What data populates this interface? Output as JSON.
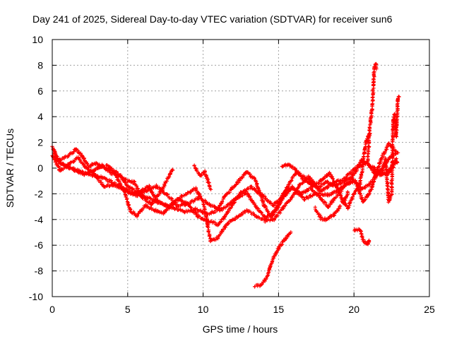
{
  "chart_data": {
    "type": "scatter",
    "title": "Day 241 of 2025, Sidereal Day-to-day VTEC variation (SDTVAR) for receiver sun6",
    "xlabel": "GPS time / hours",
    "ylabel": "SDTVAR / TECUs",
    "xlim": [
      0,
      25
    ],
    "ylim": [
      -10,
      10
    ],
    "xticks": [
      0,
      5,
      10,
      15,
      20,
      25
    ],
    "xtick_labels": [
      "0",
      "5",
      "10",
      "15",
      "20",
      "25"
    ],
    "yticks": [
      -10,
      -8,
      -6,
      -4,
      -2,
      0,
      2,
      4,
      6,
      8,
      10
    ],
    "ytick_labels": [
      "-10",
      "-8",
      "-6",
      "-4",
      "-2",
      "0",
      "2",
      "4",
      "6",
      "8",
      "10"
    ],
    "grid": true,
    "marker": "+",
    "series": [
      {
        "name": "sun6",
        "color": "#ff0000",
        "tracks": [
          [
            [
              0.0,
              1.7
            ],
            [
              0.4,
              0.6
            ],
            [
              1.0,
              0.9
            ],
            [
              1.6,
              1.5
            ],
            [
              2.0,
              0.9
            ],
            [
              2.4,
              0.1
            ],
            [
              2.9,
              0.4
            ],
            [
              3.5,
              0.0
            ],
            [
              4.1,
              -0.3
            ],
            [
              4.6,
              -1.5
            ],
            [
              5.2,
              -2.0
            ],
            [
              6.0,
              -2.2
            ],
            [
              7.0,
              -2.6
            ],
            [
              8.0,
              -3.1
            ],
            [
              8.8,
              -3.4
            ],
            [
              9.5,
              -3.2
            ],
            [
              10.3,
              -3.6
            ],
            [
              10.9,
              -3.3
            ],
            [
              11.4,
              -2.3
            ],
            [
              12.2,
              -1.2
            ],
            [
              12.9,
              -0.3
            ],
            [
              13.5,
              -1.0
            ],
            [
              14.0,
              -2.8
            ],
            [
              14.5,
              -3.8
            ],
            [
              15.0,
              -3.0
            ],
            [
              15.6,
              -1.4
            ],
            [
              16.2,
              -0.3
            ],
            [
              17.0,
              -0.9
            ],
            [
              17.8,
              -1.8
            ],
            [
              18.6,
              -1.2
            ],
            [
              19.4,
              -0.8
            ],
            [
              20.2,
              0.1
            ],
            [
              20.9,
              0.4
            ],
            [
              21.5,
              -0.6
            ],
            [
              22.2,
              -0.4
            ],
            [
              22.9,
              0.5
            ]
          ],
          [
            [
              0.1,
              1.2
            ],
            [
              0.6,
              0.3
            ],
            [
              1.2,
              0.0
            ],
            [
              1.8,
              -0.2
            ],
            [
              2.4,
              -0.5
            ],
            [
              3.2,
              -0.7
            ],
            [
              4.0,
              -1.1
            ],
            [
              4.7,
              -1.6
            ],
            [
              5.5,
              -2.0
            ],
            [
              6.2,
              -1.8
            ],
            [
              6.9,
              -1.4
            ],
            [
              7.6,
              -2.1
            ],
            [
              8.3,
              -2.9
            ],
            [
              9.0,
              -2.8
            ],
            [
              9.7,
              -2.3
            ],
            [
              10.4,
              -2.8
            ],
            [
              11.1,
              -3.3
            ],
            [
              11.8,
              -2.8
            ],
            [
              12.5,
              -1.9
            ],
            [
              13.2,
              -1.5
            ],
            [
              13.9,
              -2.1
            ],
            [
              14.6,
              -2.9
            ],
            [
              15.2,
              -2.4
            ],
            [
              15.9,
              -1.5
            ],
            [
              16.7,
              -2.4
            ],
            [
              17.5,
              -2.0
            ],
            [
              18.3,
              -2.1
            ],
            [
              19.1,
              -1.6
            ],
            [
              19.9,
              -0.9
            ],
            [
              20.5,
              -1.6
            ],
            [
              21.0,
              -1.3
            ],
            [
              21.6,
              -0.4
            ],
            [
              22.3,
              0.7
            ],
            [
              22.8,
              1.2
            ]
          ],
          [
            [
              0.2,
              0.7
            ],
            [
              0.8,
              0.2
            ],
            [
              1.4,
              -0.1
            ],
            [
              2.1,
              -0.5
            ],
            [
              2.7,
              -0.2
            ],
            [
              3.3,
              0.2
            ],
            [
              3.9,
              -0.4
            ],
            [
              4.5,
              -0.6
            ],
            [
              5.0,
              -1.4
            ],
            [
              5.6,
              -1.9
            ],
            [
              6.4,
              -1.4
            ],
            [
              7.0,
              -2.7
            ],
            [
              7.7,
              -3.0
            ],
            [
              8.4,
              -2.4
            ],
            [
              9.0,
              -2.8
            ],
            [
              9.6,
              -3.7
            ],
            [
              10.3,
              -4.1
            ],
            [
              11.0,
              -4.4
            ],
            [
              11.6,
              -3.5
            ],
            [
              12.2,
              -2.4
            ],
            [
              12.9,
              -1.9
            ],
            [
              13.6,
              -3.2
            ],
            [
              14.2,
              -3.9
            ],
            [
              14.8,
              -3.2
            ],
            [
              15.3,
              -2.0
            ],
            [
              15.9,
              -1.5
            ],
            [
              16.5,
              -2.0
            ],
            [
              17.1,
              -1.6
            ],
            [
              17.7,
              -2.2
            ],
            [
              18.3,
              -3.0
            ],
            [
              18.9,
              -2.1
            ],
            [
              19.5,
              -1.2
            ],
            [
              20.1,
              -1.0
            ],
            [
              20.6,
              -2.6
            ],
            [
              21.1,
              -1.8
            ],
            [
              21.7,
              0.4
            ],
            [
              22.3,
              1.9
            ],
            [
              22.9,
              1.2
            ]
          ],
          [
            [
              0.0,
              1.0
            ],
            [
              0.5,
              -0.2
            ],
            [
              1.1,
              0.3
            ],
            [
              1.7,
              0.8
            ],
            [
              2.2,
              0.1
            ],
            [
              2.8,
              -0.5
            ],
            [
              3.4,
              -1.4
            ],
            [
              4.0,
              -1.3
            ],
            [
              4.7,
              -1.6
            ],
            [
              5.2,
              -3.3
            ],
            [
              5.6,
              -3.7
            ],
            [
              6.2,
              -2.9
            ],
            [
              6.8,
              -3.3
            ],
            [
              7.4,
              -3.5
            ],
            [
              8.2,
              -2.5
            ],
            [
              8.9,
              -2.0
            ],
            [
              9.5,
              -1.6
            ],
            [
              10.0,
              -2.6
            ],
            [
              10.5,
              -5.7
            ],
            [
              11.0,
              -5.4
            ],
            [
              11.6,
              -4.3
            ],
            [
              12.3,
              -3.8
            ],
            [
              12.9,
              -3.3
            ],
            [
              13.5,
              -3.7
            ],
            [
              14.1,
              -4.1
            ],
            [
              14.7,
              -4.0
            ],
            [
              15.3,
              -3.1
            ],
            [
              15.8,
              -2.4
            ],
            [
              16.4,
              -1.3
            ],
            [
              17.0,
              -0.7
            ],
            [
              17.6,
              -1.5
            ],
            [
              18.2,
              -1.1
            ],
            [
              18.8,
              -1.4
            ],
            [
              19.4,
              -1.0
            ],
            [
              20.0,
              -0.5
            ],
            [
              20.5,
              0.6
            ],
            [
              21.0,
              0.2
            ],
            [
              21.6,
              -0.2
            ],
            [
              22.2,
              -0.5
            ],
            [
              22.8,
              0.7
            ]
          ],
          [
            [
              3.6,
              0.2
            ],
            [
              4.2,
              -0.3
            ],
            [
              4.8,
              -0.9
            ],
            [
              5.4,
              -1.1
            ],
            [
              6.0,
              -2.3
            ],
            [
              6.6,
              -2.8
            ],
            [
              7.2,
              -1.8
            ],
            [
              7.8,
              -0.5
            ],
            [
              8.0,
              -0.1
            ]
          ],
          [
            [
              9.4,
              0.2
            ],
            [
              9.8,
              -0.6
            ],
            [
              10.1,
              -0.3
            ],
            [
              10.5,
              -1.6
            ]
          ],
          [
            [
              13.4,
              -9.2
            ],
            [
              13.8,
              -9.1
            ],
            [
              14.2,
              -8.6
            ],
            [
              14.6,
              -7.2
            ],
            [
              15.0,
              -6.2
            ],
            [
              15.4,
              -5.6
            ],
            [
              15.8,
              -5.0
            ]
          ],
          [
            [
              15.2,
              0.1
            ],
            [
              15.7,
              0.3
            ],
            [
              16.1,
              -0.1
            ],
            [
              16.6,
              -0.8
            ],
            [
              17.2,
              -1.4
            ],
            [
              17.8,
              -1.0
            ],
            [
              18.4,
              -0.4
            ],
            [
              18.9,
              -1.6
            ],
            [
              19.3,
              -2.7
            ],
            [
              19.6,
              -1.9
            ]
          ],
          [
            [
              17.4,
              -3.1
            ],
            [
              17.8,
              -3.9
            ],
            [
              18.2,
              -4.0
            ],
            [
              18.7,
              -3.6
            ],
            [
              19.1,
              -3.0
            ]
          ],
          [
            [
              19.2,
              -2.5
            ],
            [
              19.6,
              -3.1
            ],
            [
              20.0,
              -2.0
            ],
            [
              20.4,
              -1.2
            ],
            [
              20.8,
              2.0
            ],
            [
              21.0,
              2.6
            ]
          ],
          [
            [
              20.0,
              -4.8
            ],
            [
              20.4,
              -4.8
            ],
            [
              20.6,
              -5.6
            ],
            [
              20.9,
              -5.9
            ],
            [
              21.0,
              -5.6
            ]
          ],
          [
            [
              20.9,
              0.5
            ],
            [
              21.1,
              3.8
            ],
            [
              21.2,
              4.6
            ],
            [
              21.3,
              6.6
            ],
            [
              21.35,
              7.9
            ],
            [
              21.45,
              8.1
            ],
            [
              21.5,
              7.8
            ]
          ],
          [
            [
              21.8,
              -0.6
            ],
            [
              22.1,
              0.7
            ],
            [
              22.3,
              -2.6
            ],
            [
              22.5,
              -2.0
            ],
            [
              22.6,
              3.6
            ],
            [
              22.7,
              4.2
            ],
            [
              22.8,
              2.5
            ],
            [
              22.9,
              5.4
            ],
            [
              23.0,
              5.6
            ]
          ]
        ]
      }
    ]
  }
}
